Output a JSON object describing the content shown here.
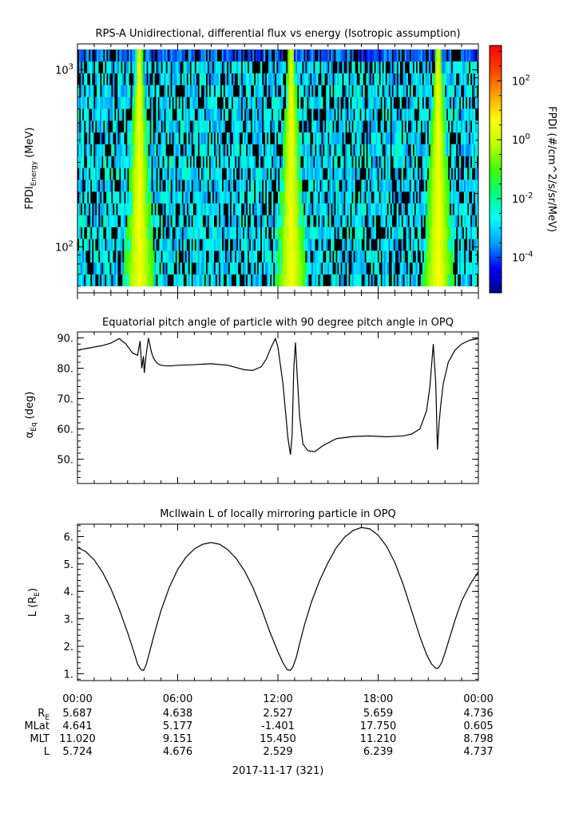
{
  "chart_data": [
    {
      "type": "heatmap",
      "title": "RPS-A Unidirectional, differential flux vs energy (Isotropic assumption)",
      "ylabel_main": "FPDI",
      "ylabel_sub": "Energy",
      "ylabel_unit": "(MeV)",
      "yscale": "log",
      "ylim": [
        55,
        1400
      ],
      "yticks": [
        {
          "value": 100,
          "base": "10",
          "exp": "2"
        },
        {
          "value": 1000,
          "base": "10",
          "exp": "3"
        }
      ],
      "xlim_hours": [
        0,
        24
      ],
      "colorbar": {
        "label": "FPDI (#/cm^2/s/sr/MeV)",
        "scale": "log",
        "range_exp": [
          -5.2,
          3.2
        ],
        "ticks": [
          {
            "exp": "-4"
          },
          {
            "exp": "-2"
          },
          {
            "exp": "0"
          },
          {
            "exp": "2"
          }
        ],
        "colors": [
          "#00008c",
          "#0000ff",
          "#00a0ff",
          "#00ffff",
          "#00ff80",
          "#40ff00",
          "#c0ff00",
          "#ffff00",
          "#ffa000",
          "#ff4000",
          "#ff0000"
        ]
      },
      "energy_channels": 20,
      "bright_bands": [
        {
          "center_hours": 3.7,
          "note": "emission band"
        },
        {
          "center_hours": 12.8,
          "note": "emission band"
        },
        {
          "center_hours": 21.6,
          "note": "emission band"
        }
      ]
    },
    {
      "type": "line",
      "title": "Equatorial pitch angle of particle with 90 degree pitch angle in OPQ",
      "ylabel_main": "α",
      "ylabel_sub": "Eq",
      "ylabel_unit": "(deg)",
      "ylim": [
        42,
        92
      ],
      "yticks": [
        "50.",
        "60.",
        "70.",
        "80.",
        "90."
      ],
      "series": [
        {
          "x_hours": [
            0,
            0.5,
            1,
            1.5,
            2,
            2.5,
            2.9,
            3.3,
            3.6,
            3.75,
            3.85,
            3.95,
            4.0,
            4.1,
            4.25,
            4.4,
            4.5,
            4.65,
            4.8,
            5.0,
            5.3,
            5.6,
            6,
            7,
            8,
            9,
            10,
            10.5,
            11,
            11.3,
            11.6,
            11.85,
            12.0,
            12.3,
            12.6,
            12.75,
            12.85,
            12.95,
            13.05,
            13.15,
            13.3,
            13.5,
            13.8,
            14.2,
            14.7,
            15.5,
            16.5,
            17.5,
            18.5,
            19.5,
            20.0,
            20.5,
            20.9,
            21.1,
            21.3,
            21.45,
            21.55,
            21.65,
            21.75,
            21.9,
            22.2,
            22.6,
            23,
            23.5,
            24
          ],
          "y_deg": [
            86,
            86.5,
            87,
            87.5,
            88.3,
            89.8,
            88,
            85,
            84.3,
            89,
            80,
            84,
            78.5,
            84,
            90,
            86,
            84,
            82.5,
            81.5,
            81,
            80.8,
            80.8,
            81,
            81.2,
            81.5,
            81,
            79.5,
            79.3,
            80.5,
            83,
            87,
            89.8,
            87,
            75,
            57,
            51.5,
            58,
            80,
            88.5,
            78,
            64,
            55,
            52.8,
            52.5,
            54.5,
            56.8,
            57.5,
            57.7,
            57.4,
            57.7,
            58.3,
            60,
            66,
            74,
            88,
            75,
            53.2,
            62,
            68,
            75,
            82,
            86,
            88,
            89.3,
            89.8
          ]
        }
      ]
    },
    {
      "type": "line",
      "title": "McIlwain L of locally mirroring particle in OPQ",
      "ylabel_main": "L (R",
      "ylabel_sub": "E",
      "ylabel_unit": ")",
      "ylim": [
        0.75,
        6.45
      ],
      "yticks": [
        "1.",
        "2.",
        "3.",
        "4.",
        "5.",
        "6."
      ],
      "series": [
        {
          "x_hours": [
            0,
            0.5,
            1,
            1.5,
            2,
            2.5,
            3,
            3.4,
            3.6,
            3.8,
            3.95,
            4.1,
            4.3,
            4.6,
            5,
            5.5,
            6,
            6.5,
            7,
            7.5,
            8,
            8.5,
            9,
            9.5,
            10,
            10.5,
            11,
            11.5,
            12,
            12.3,
            12.55,
            12.75,
            12.9,
            13.1,
            13.3,
            13.6,
            14,
            14.5,
            15,
            15.5,
            16,
            16.5,
            17,
            17.5,
            18,
            18.5,
            19,
            19.5,
            20,
            20.5,
            20.9,
            21.2,
            21.45,
            21.6,
            21.8,
            22.0,
            22.3,
            22.6,
            23,
            23.5,
            24
          ],
          "y_L": [
            5.6,
            5.45,
            5.15,
            4.7,
            4.1,
            3.35,
            2.5,
            1.75,
            1.35,
            1.15,
            1.12,
            1.3,
            1.75,
            2.45,
            3.3,
            4.15,
            4.8,
            5.25,
            5.55,
            5.72,
            5.78,
            5.72,
            5.52,
            5.2,
            4.75,
            4.15,
            3.4,
            2.55,
            1.8,
            1.4,
            1.15,
            1.12,
            1.25,
            1.6,
            2.1,
            2.8,
            3.6,
            4.4,
            5.05,
            5.6,
            5.98,
            6.22,
            6.33,
            6.28,
            6.05,
            5.65,
            5.05,
            4.25,
            3.3,
            2.35,
            1.7,
            1.35,
            1.2,
            1.2,
            1.4,
            1.75,
            2.35,
            2.95,
            3.65,
            4.25,
            4.72
          ]
        }
      ]
    }
  ],
  "xaxis": {
    "tick_labels": [
      "00:00",
      "06:00",
      "12:00",
      "18:00",
      "00:00"
    ],
    "ephemeris": [
      {
        "label": "R",
        "sub": "E",
        "values": [
          "5.687",
          "4.638",
          "2.527",
          "5.659",
          "4.736"
        ]
      },
      {
        "label": "MLat",
        "sub": "",
        "values": [
          "4.641",
          "5.177",
          "-1.401",
          "17.750",
          "0.605"
        ]
      },
      {
        "label": "MLT",
        "sub": "",
        "values": [
          "11.020",
          "9.151",
          "15.450",
          "11.210",
          "8.798"
        ]
      },
      {
        "label": "L",
        "sub": "",
        "values": [
          "5.724",
          "4.676",
          "2.529",
          "6.239",
          "4.737"
        ]
      }
    ],
    "date_label": "2017-11-17 (321)"
  }
}
